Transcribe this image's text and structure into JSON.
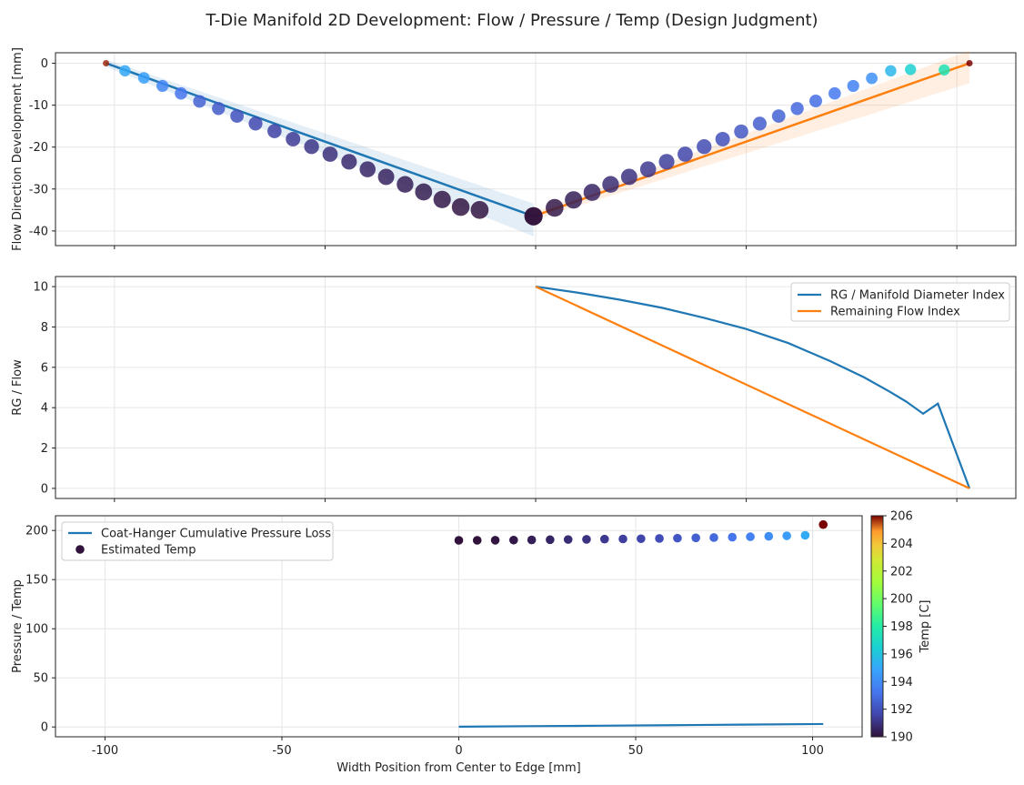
{
  "title": "T-Die Manifold 2D Development: Flow / Pressure / Temp (Design Judgment)",
  "colors": {
    "series_blue": "#1f77b4",
    "series_orange": "#ff7f0e",
    "grid": "#e6e6e6",
    "axes": "#222222"
  },
  "chart_data": [
    {
      "type": "scatter",
      "panel": "top",
      "ylabel": "Flow Direction Development [mm]",
      "ylim": [
        -43.5,
        2.5
      ],
      "yticks": [
        0,
        -10,
        -20,
        -30,
        -40
      ],
      "grid": true,
      "series": [
        {
          "values": [
            [
              -102,
              0
            ],
            [
              -0.5,
              -36.5
            ]
          ]
        },
        {
          "values": [
            [
              -0.5,
              -36.5
            ],
            [
              103,
              0
            ]
          ]
        }
      ],
      "points_left": [
        [
          -102,
          0,
          205.7
        ],
        [
          -97.5,
          -1.8,
          195
        ],
        [
          -93,
          -3.5,
          194.7
        ],
        [
          -88.6,
          -5.4,
          193.8
        ],
        [
          -84.2,
          -7.2,
          193.2
        ],
        [
          -79.8,
          -9.1,
          192.6
        ],
        [
          -75.3,
          -10.8,
          192.3
        ],
        [
          -70.9,
          -12.6,
          192.0
        ],
        [
          -66.5,
          -14.4,
          191.7
        ],
        [
          -62,
          -16.2,
          191.5
        ],
        [
          -57.6,
          -18.1,
          191.3
        ],
        [
          -53.2,
          -19.9,
          191.1
        ],
        [
          -48.8,
          -21.7,
          190.9
        ],
        [
          -44.3,
          -23.5,
          190.7
        ],
        [
          -39.9,
          -25.3,
          190.6
        ],
        [
          -35.5,
          -27.1,
          190.5
        ],
        [
          -31,
          -28.9,
          190.4
        ],
        [
          -26.6,
          -30.7,
          190.3
        ],
        [
          -22.2,
          -32.5,
          190.2
        ],
        [
          -17.8,
          -34.3,
          190.1
        ],
        [
          -13.3,
          -35.0,
          190.1
        ],
        [
          -0.5,
          -36.5,
          190.0
        ]
      ],
      "points_right": [
        [
          -0.5,
          -36.5,
          190.0
        ],
        [
          4.5,
          -34.5,
          190.2
        ],
        [
          9,
          -32.6,
          190.4
        ],
        [
          13.4,
          -30.8,
          190.6
        ],
        [
          17.8,
          -28.9,
          190.8
        ],
        [
          22.2,
          -27.1,
          191.0
        ],
        [
          26.7,
          -25.3,
          191.2
        ],
        [
          31.1,
          -23.5,
          191.4
        ],
        [
          35.5,
          -21.7,
          191.6
        ],
        [
          40,
          -19.9,
          191.8
        ],
        [
          44.4,
          -18.1,
          192.0
        ],
        [
          48.8,
          -16.3,
          192.2
        ],
        [
          53.2,
          -14.4,
          192.4
        ],
        [
          57.7,
          -12.6,
          192.6
        ],
        [
          62.1,
          -10.8,
          192.8
        ],
        [
          66.5,
          -9.0,
          193.0
        ],
        [
          71,
          -7.2,
          193.3
        ],
        [
          75.4,
          -5.4,
          193.7
        ],
        [
          79.8,
          -3.6,
          194.2
        ],
        [
          84.3,
          -1.8,
          195.5
        ],
        [
          89,
          -1.5,
          196.5
        ],
        [
          97,
          -1.6,
          197.5
        ],
        [
          103,
          0,
          206
        ]
      ]
    },
    {
      "type": "line",
      "panel": "middle",
      "ylabel": "RG / Flow",
      "ylim": [
        -0.5,
        10.5
      ],
      "yticks": [
        0,
        2,
        4,
        6,
        8,
        10
      ],
      "grid": true,
      "legend": "top-right",
      "series": [
        {
          "name": "RG / Manifold Diameter Index",
          "x": [
            0,
            10,
            20,
            30,
            40,
            50,
            60,
            70,
            78,
            84,
            88,
            92,
            95.5,
            103
          ],
          "y": [
            10,
            9.7,
            9.35,
            8.95,
            8.45,
            7.9,
            7.2,
            6.3,
            5.5,
            4.8,
            4.3,
            3.7,
            4.2,
            0
          ]
        },
        {
          "name": "Remaining Flow Index",
          "x": [
            0,
            103
          ],
          "y": [
            10,
            0
          ]
        }
      ]
    },
    {
      "type": "scatter",
      "panel": "bottom",
      "xlabel": "Width Position from Center to Edge [mm]",
      "ylabel": "Pressure / Temp",
      "xlim": [
        -114,
        114
      ],
      "xticks": [
        -100,
        -50,
        0,
        50,
        100
      ],
      "ylim": [
        -10,
        215
      ],
      "yticks": [
        0,
        50,
        100,
        150,
        200
      ],
      "grid": true,
      "legend": "top-left",
      "series": [
        {
          "name": "Coat-Hanger Cumulative Pressure Loss",
          "x": [
            0,
            20,
            40,
            60,
            80,
            103
          ],
          "y": [
            0.3,
            0.8,
            1.3,
            1.8,
            2.4,
            3.0
          ]
        },
        {
          "name": "Estimated Temp",
          "x": [
            0,
            5.2,
            10.3,
            15.5,
            20.6,
            25.8,
            30.9,
            36.1,
            41.2,
            46.4,
            51.5,
            56.7,
            61.8,
            67.0,
            72.1,
            77.3,
            82.4,
            87.6,
            92.7,
            97.9,
            103
          ],
          "y": [
            190,
            190,
            190.1,
            190.2,
            190.4,
            190.6,
            190.8,
            191,
            191.2,
            191.4,
            191.6,
            191.9,
            192.2,
            192.5,
            192.8,
            193.2,
            193.6,
            194.1,
            194.6,
            195.1,
            206
          ]
        }
      ],
      "colorbar": {
        "label": "Temp [C]",
        "range": [
          190,
          206
        ],
        "ticks": [
          190,
          192,
          194,
          196,
          198,
          200,
          202,
          204,
          206
        ]
      }
    }
  ]
}
